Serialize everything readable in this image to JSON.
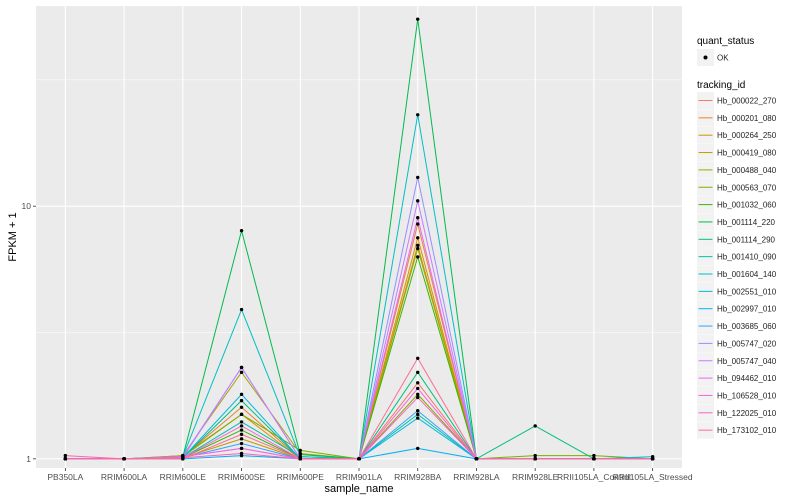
{
  "chart_data": {
    "type": "line",
    "xlabel": "sample_name",
    "ylabel": "FPKM + 1",
    "y_scale": "log10",
    "ylim": [
      0.92,
      62
    ],
    "y_ticks": [
      1,
      10
    ],
    "y_tick_labels": [
      "1",
      "10"
    ],
    "grid": true,
    "categories": [
      "PB350LA",
      "RRIM600LA",
      "RRIM600LE",
      "RRIM600SE",
      "RRIM600PE",
      "RRIM901LA",
      "RRIM928BA",
      "RRIM928LA",
      "RRIM928LE",
      "RRII105LA_Control",
      "RRII105LA_Stressed"
    ],
    "legend_shape": {
      "title": "quant_status",
      "entries": [
        "OK"
      ]
    },
    "legend_color_title": "tracking_id",
    "series": [
      {
        "name": "Hb_000022_270",
        "color": "#F8766D",
        "values": [
          1.0,
          1.0,
          1.02,
          1.1,
          1.0,
          1.0,
          2.0,
          1.0,
          1.0,
          1.0,
          1.0
        ]
      },
      {
        "name": "Hb_000201_080",
        "color": "#EA8331",
        "values": [
          1.0,
          1.0,
          1.02,
          1.6,
          1.0,
          1.0,
          8.5,
          1.0,
          1.0,
          1.0,
          1.0
        ]
      },
      {
        "name": "Hb_000264_250",
        "color": "#D89000",
        "values": [
          1.0,
          1.0,
          1.03,
          1.5,
          1.0,
          1.0,
          7.5,
          1.0,
          1.0,
          1.0,
          1.0
        ]
      },
      {
        "name": "Hb_000419_080",
        "color": "#C09B00",
        "values": [
          1.0,
          1.0,
          1.01,
          1.2,
          1.0,
          1.0,
          7.0,
          1.0,
          1.0,
          1.0,
          1.0
        ]
      },
      {
        "name": "Hb_000488_040",
        "color": "#A3A500",
        "values": [
          1.0,
          1.0,
          1.03,
          2.2,
          1.05,
          1.0,
          6.8,
          1.0,
          1.0,
          1.0,
          1.0
        ]
      },
      {
        "name": "Hb_000563_070",
        "color": "#7CAE00",
        "values": [
          1.0,
          1.0,
          1.02,
          1.5,
          1.08,
          1.0,
          1.8,
          1.0,
          1.03,
          1.03,
          1.0
        ]
      },
      {
        "name": "Hb_001032_060",
        "color": "#39B600",
        "values": [
          1.0,
          1.0,
          1.01,
          1.3,
          1.0,
          1.0,
          6.3,
          1.0,
          1.0,
          1.0,
          1.0
        ]
      },
      {
        "name": "Hb_001114_220",
        "color": "#00BB4E",
        "values": [
          1.0,
          1.0,
          1.02,
          8.0,
          1.04,
          1.0,
          55.0,
          1.0,
          1.0,
          1.0,
          1.0
        ]
      },
      {
        "name": "Hb_001114_290",
        "color": "#00BF7D",
        "values": [
          1.0,
          1.0,
          1.01,
          1.7,
          1.0,
          1.0,
          2.2,
          1.0,
          1.35,
          1.0,
          1.0
        ]
      },
      {
        "name": "Hb_001410_090",
        "color": "#00C1A3",
        "values": [
          1.0,
          1.0,
          1.01,
          1.4,
          1.02,
          1.0,
          1.5,
          1.0,
          1.0,
          1.0,
          1.0
        ]
      },
      {
        "name": "Hb_001604_140",
        "color": "#00BFC4",
        "values": [
          1.0,
          1.0,
          1.02,
          3.9,
          1.02,
          1.0,
          23.0,
          1.0,
          1.0,
          1.0,
          1.0
        ]
      },
      {
        "name": "Hb_002551_010",
        "color": "#00BAE0",
        "values": [
          1.0,
          1.0,
          1.01,
          1.8,
          1.0,
          1.0,
          1.45,
          1.0,
          1.0,
          1.0,
          1.02
        ]
      },
      {
        "name": "Hb_002997_010",
        "color": "#00B0F6",
        "values": [
          1.0,
          1.0,
          1.0,
          1.03,
          1.0,
          1.0,
          1.1,
          1.0,
          1.0,
          1.0,
          1.0
        ]
      },
      {
        "name": "Hb_003685_060",
        "color": "#35A2FF",
        "values": [
          1.0,
          1.0,
          1.01,
          1.15,
          1.0,
          1.0,
          1.55,
          1.0,
          1.0,
          1.0,
          1.0
        ]
      },
      {
        "name": "Hb_005747_020",
        "color": "#9590FF",
        "values": [
          1.0,
          1.0,
          1.02,
          2.3,
          1.0,
          1.0,
          13.0,
          1.0,
          1.0,
          1.0,
          1.0
        ]
      },
      {
        "name": "Hb_005747_040",
        "color": "#C77CFF",
        "values": [
          1.0,
          1.0,
          1.01,
          2.3,
          1.0,
          1.0,
          10.5,
          1.0,
          1.0,
          1.0,
          1.0
        ]
      },
      {
        "name": "Hb_094462_010",
        "color": "#E76BF3",
        "values": [
          1.0,
          1.0,
          1.02,
          1.1,
          1.0,
          1.0,
          9.0,
          1.0,
          1.0,
          1.0,
          1.0
        ]
      },
      {
        "name": "Hb_106528_010",
        "color": "#FA62DB",
        "values": [
          1.0,
          1.0,
          1.01,
          1.35,
          1.0,
          1.0,
          1.9,
          1.0,
          1.0,
          1.0,
          1.0
        ]
      },
      {
        "name": "Hb_122025_010",
        "color": "#FF62BC",
        "values": [
          1.03,
          1.0,
          1.01,
          1.05,
          1.0,
          1.0,
          1.75,
          1.0,
          1.0,
          1.0,
          1.0
        ]
      },
      {
        "name": "Hb_173102_010",
        "color": "#FF6C91",
        "values": [
          1.0,
          1.0,
          1.0,
          1.25,
          1.0,
          1.0,
          2.5,
          1.0,
          1.0,
          1.0,
          1.0
        ]
      }
    ]
  }
}
